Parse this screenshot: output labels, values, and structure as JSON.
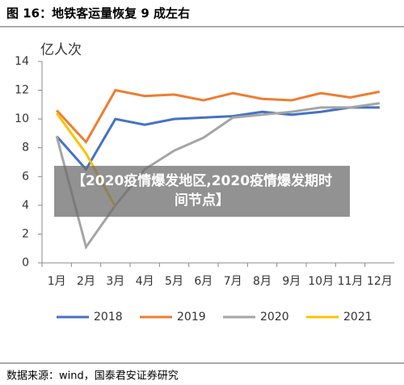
{
  "chart_data": {
    "type": "line",
    "title": "图 16：地铁客运量恢复 9 成左右",
    "y_label": "亿人次",
    "categories": [
      "1月",
      "2月",
      "3月",
      "4月",
      "5月",
      "6月",
      "7月",
      "8月",
      "9月",
      "10月",
      "11月",
      "12月"
    ],
    "series": [
      {
        "name": "2018",
        "color": "#4472c4",
        "values": [
          8.8,
          6.5,
          10.0,
          9.6,
          10.0,
          10.1,
          10.2,
          10.5,
          10.3,
          10.5,
          10.8,
          10.8
        ]
      },
      {
        "name": "2019",
        "color": "#ed7d31",
        "values": [
          10.6,
          8.4,
          12.0,
          11.6,
          11.7,
          11.3,
          11.8,
          11.4,
          11.3,
          11.8,
          11.5,
          11.9
        ]
      },
      {
        "name": "2020",
        "color": "#a5a5a5",
        "values": [
          8.8,
          1.1,
          4.0,
          6.5,
          7.8,
          8.7,
          10.1,
          10.3,
          10.5,
          10.8,
          10.8,
          11.1
        ]
      },
      {
        "name": "2021",
        "color": "#ffc000",
        "values": [
          10.4,
          7.6,
          3.9,
          null,
          null,
          null,
          null,
          null,
          null,
          null,
          null,
          null
        ]
      }
    ],
    "ylim": [
      0,
      14
    ],
    "yticks": [
      0,
      2,
      4,
      6,
      8,
      10,
      12,
      14
    ],
    "source": "数据来源：wind，国泰君安证券研究",
    "overlay": "【2020疫情爆发地区,2020疫情爆发期时间节点】"
  }
}
